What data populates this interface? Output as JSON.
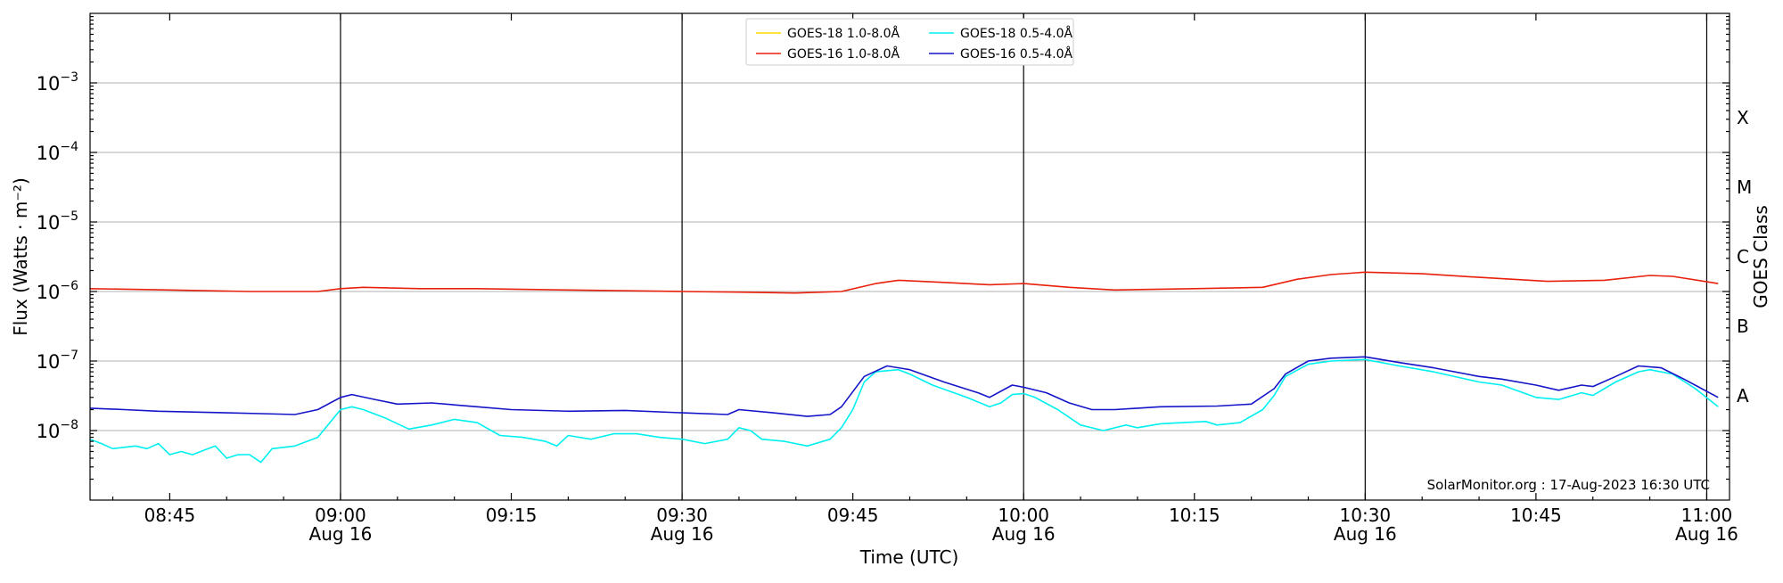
{
  "chart_data": {
    "type": "line",
    "xlabel": "Time (UTC)",
    "ylabel": "Flux (Watts · m⁻²)",
    "ylabel_right": "GOES Class",
    "credit": "SolarMonitor.org : 17-Aug-2023 16:30 UTC",
    "y_scale": "log",
    "ylim": [
      1e-09,
      0.01
    ],
    "xlim": [
      "2023-08-16T08:38",
      "2023-08-16T11:02"
    ],
    "grid": true,
    "legend_position": "top-center",
    "y_ticks": [
      {
        "value": 1e-08,
        "base": "10",
        "exp": "−8"
      },
      {
        "value": 1e-07,
        "base": "10",
        "exp": "−7"
      },
      {
        "value": 1e-06,
        "base": "10",
        "exp": "−6"
      },
      {
        "value": 1e-05,
        "base": "10",
        "exp": "−5"
      },
      {
        "value": 0.0001,
        "base": "10",
        "exp": "−4"
      },
      {
        "value": 0.001,
        "base": "10",
        "exp": "−3"
      }
    ],
    "x_ticks": [
      {
        "time": "2023-08-16T08:45",
        "label": "08:45",
        "sublabel": ""
      },
      {
        "time": "2023-08-16T09:00",
        "label": "09:00",
        "sublabel": "Aug 16"
      },
      {
        "time": "2023-08-16T09:15",
        "label": "09:15",
        "sublabel": ""
      },
      {
        "time": "2023-08-16T09:30",
        "label": "09:30",
        "sublabel": "Aug 16"
      },
      {
        "time": "2023-08-16T09:45",
        "label": "09:45",
        "sublabel": ""
      },
      {
        "time": "2023-08-16T10:00",
        "label": "10:00",
        "sublabel": "Aug 16"
      },
      {
        "time": "2023-08-16T10:15",
        "label": "10:15",
        "sublabel": ""
      },
      {
        "time": "2023-08-16T10:30",
        "label": "10:30",
        "sublabel": "Aug 16"
      },
      {
        "time": "2023-08-16T10:45",
        "label": "10:45",
        "sublabel": ""
      },
      {
        "time": "2023-08-16T11:00",
        "label": "11:00",
        "sublabel": "Aug 16"
      }
    ],
    "vertical_lines": [
      "2023-08-16T09:00",
      "2023-08-16T09:30",
      "2023-08-16T10:00",
      "2023-08-16T10:30",
      "2023-08-16T11:00"
    ],
    "goes_classes": [
      {
        "label": "A",
        "value": 3.16e-08
      },
      {
        "label": "B",
        "value": 3.16e-07
      },
      {
        "label": "C",
        "value": 3.16e-06
      },
      {
        "label": "M",
        "value": 3.16e-05
      },
      {
        "label": "X",
        "value": 0.000316
      }
    ],
    "series": [
      {
        "name": "GOES-18 1.0-8.0Å",
        "color": "#ffd700",
        "points": []
      },
      {
        "name": "GOES-16 1.0-8.0Å",
        "color": "#e8200c",
        "points": [
          [
            "2023-08-16T08:38",
            1.1e-06
          ],
          [
            "2023-08-16T08:45",
            1.05e-06
          ],
          [
            "2023-08-16T08:52",
            1e-06
          ],
          [
            "2023-08-16T08:58",
            1e-06
          ],
          [
            "2023-08-16T09:00",
            1.1e-06
          ],
          [
            "2023-08-16T09:02",
            1.15e-06
          ],
          [
            "2023-08-16T09:07",
            1.1e-06
          ],
          [
            "2023-08-16T09:12",
            1.1e-06
          ],
          [
            "2023-08-16T09:20",
            1.05e-06
          ],
          [
            "2023-08-16T09:30",
            1e-06
          ],
          [
            "2023-08-16T09:35",
            9.8e-07
          ],
          [
            "2023-08-16T09:40",
            9.5e-07
          ],
          [
            "2023-08-16T09:44",
            1e-06
          ],
          [
            "2023-08-16T09:47",
            1.3e-06
          ],
          [
            "2023-08-16T09:49",
            1.45e-06
          ],
          [
            "2023-08-16T09:53",
            1.35e-06
          ],
          [
            "2023-08-16T09:57",
            1.25e-06
          ],
          [
            "2023-08-16T10:00",
            1.3e-06
          ],
          [
            "2023-08-16T10:04",
            1.15e-06
          ],
          [
            "2023-08-16T10:08",
            1.05e-06
          ],
          [
            "2023-08-16T10:15",
            1.1e-06
          ],
          [
            "2023-08-16T10:21",
            1.15e-06
          ],
          [
            "2023-08-16T10:24",
            1.5e-06
          ],
          [
            "2023-08-16T10:27",
            1.75e-06
          ],
          [
            "2023-08-16T10:30",
            1.9e-06
          ],
          [
            "2023-08-16T10:35",
            1.8e-06
          ],
          [
            "2023-08-16T10:40",
            1.6e-06
          ],
          [
            "2023-08-16T10:46",
            1.4e-06
          ],
          [
            "2023-08-16T10:51",
            1.45e-06
          ],
          [
            "2023-08-16T10:55",
            1.7e-06
          ],
          [
            "2023-08-16T10:57",
            1.65e-06
          ],
          [
            "2023-08-16T11:01",
            1.3e-06
          ]
        ]
      },
      {
        "name": "GOES-18 0.5-4.0Å",
        "color": "#00f0f0",
        "points": [
          [
            "2023-08-16T08:38",
            7.5e-09
          ],
          [
            "2023-08-16T08:39",
            6.5e-09
          ],
          [
            "2023-08-16T08:40",
            5.5e-09
          ],
          [
            "2023-08-16T08:42",
            6e-09
          ],
          [
            "2023-08-16T08:43",
            5.5e-09
          ],
          [
            "2023-08-16T08:44",
            6.5e-09
          ],
          [
            "2023-08-16T08:45",
            4.5e-09
          ],
          [
            "2023-08-16T08:46",
            5e-09
          ],
          [
            "2023-08-16T08:47",
            4.5e-09
          ],
          [
            "2023-08-16T08:49",
            6e-09
          ],
          [
            "2023-08-16T08:50",
            4e-09
          ],
          [
            "2023-08-16T08:51",
            4.5e-09
          ],
          [
            "2023-08-16T08:52",
            4.5e-09
          ],
          [
            "2023-08-16T08:53",
            3.5e-09
          ],
          [
            "2023-08-16T08:54",
            5.5e-09
          ],
          [
            "2023-08-16T08:56",
            6e-09
          ],
          [
            "2023-08-16T08:58",
            8e-09
          ],
          [
            "2023-08-16T09:00",
            2e-08
          ],
          [
            "2023-08-16T09:01",
            2.2e-08
          ],
          [
            "2023-08-16T09:02",
            2e-08
          ],
          [
            "2023-08-16T09:04",
            1.5e-08
          ],
          [
            "2023-08-16T09:06",
            1.05e-08
          ],
          [
            "2023-08-16T09:08",
            1.2e-08
          ],
          [
            "2023-08-16T09:10",
            1.45e-08
          ],
          [
            "2023-08-16T09:12",
            1.3e-08
          ],
          [
            "2023-08-16T09:14",
            8.5e-09
          ],
          [
            "2023-08-16T09:16",
            8e-09
          ],
          [
            "2023-08-16T09:18",
            7e-09
          ],
          [
            "2023-08-16T09:19",
            6e-09
          ],
          [
            "2023-08-16T09:20",
            8.5e-09
          ],
          [
            "2023-08-16T09:22",
            7.5e-09
          ],
          [
            "2023-08-16T09:24",
            9e-09
          ],
          [
            "2023-08-16T09:26",
            9e-09
          ],
          [
            "2023-08-16T09:28",
            8e-09
          ],
          [
            "2023-08-16T09:30",
            7.5e-09
          ],
          [
            "2023-08-16T09:32",
            6.5e-09
          ],
          [
            "2023-08-16T09:34",
            7.5e-09
          ],
          [
            "2023-08-16T09:35",
            1.1e-08
          ],
          [
            "2023-08-16T09:36",
            1e-08
          ],
          [
            "2023-08-16T09:37",
            7.5e-09
          ],
          [
            "2023-08-16T09:39",
            7e-09
          ],
          [
            "2023-08-16T09:41",
            6e-09
          ],
          [
            "2023-08-16T09:43",
            7.5e-09
          ],
          [
            "2023-08-16T09:44",
            1.1e-08
          ],
          [
            "2023-08-16T09:45",
            2e-08
          ],
          [
            "2023-08-16T09:46",
            5e-08
          ],
          [
            "2023-08-16T09:47",
            7e-08
          ],
          [
            "2023-08-16T09:49",
            7.5e-08
          ],
          [
            "2023-08-16T09:50",
            6.5e-08
          ],
          [
            "2023-08-16T09:52",
            4.5e-08
          ],
          [
            "2023-08-16T09:55",
            3e-08
          ],
          [
            "2023-08-16T09:57",
            2.2e-08
          ],
          [
            "2023-08-16T09:58",
            2.5e-08
          ],
          [
            "2023-08-16T09:59",
            3.3e-08
          ],
          [
            "2023-08-16T10:00",
            3.4e-08
          ],
          [
            "2023-08-16T10:01",
            3e-08
          ],
          [
            "2023-08-16T10:03",
            2e-08
          ],
          [
            "2023-08-16T10:05",
            1.2e-08
          ],
          [
            "2023-08-16T10:07",
            1e-08
          ],
          [
            "2023-08-16T10:09",
            1.2e-08
          ],
          [
            "2023-08-16T10:10",
            1.1e-08
          ],
          [
            "2023-08-16T10:12",
            1.25e-08
          ],
          [
            "2023-08-16T10:14",
            1.3e-08
          ],
          [
            "2023-08-16T10:16",
            1.35e-08
          ],
          [
            "2023-08-16T10:17",
            1.2e-08
          ],
          [
            "2023-08-16T10:19",
            1.3e-08
          ],
          [
            "2023-08-16T10:21",
            2e-08
          ],
          [
            "2023-08-16T10:22",
            3.2e-08
          ],
          [
            "2023-08-16T10:23",
            6e-08
          ],
          [
            "2023-08-16T10:25",
            9e-08
          ],
          [
            "2023-08-16T10:27",
            1e-07
          ],
          [
            "2023-08-16T10:30",
            1.05e-07
          ],
          [
            "2023-08-16T10:33",
            8.5e-08
          ],
          [
            "2023-08-16T10:36",
            7e-08
          ],
          [
            "2023-08-16T10:40",
            5e-08
          ],
          [
            "2023-08-16T10:42",
            4.5e-08
          ],
          [
            "2023-08-16T10:45",
            3e-08
          ],
          [
            "2023-08-16T10:47",
            2.8e-08
          ],
          [
            "2023-08-16T10:49",
            3.5e-08
          ],
          [
            "2023-08-16T10:50",
            3.2e-08
          ],
          [
            "2023-08-16T10:52",
            5e-08
          ],
          [
            "2023-08-16T10:54",
            7e-08
          ],
          [
            "2023-08-16T10:55",
            7.5e-08
          ],
          [
            "2023-08-16T10:57",
            6.5e-08
          ],
          [
            "2023-08-16T10:59",
            4e-08
          ],
          [
            "2023-08-16T11:01",
            2.2e-08
          ]
        ]
      },
      {
        "name": "GOES-16 0.5-4.0Å",
        "color": "#1414c8",
        "points": [
          [
            "2023-08-16T08:38",
            2.1e-08
          ],
          [
            "2023-08-16T08:41",
            2e-08
          ],
          [
            "2023-08-16T08:44",
            1.9e-08
          ],
          [
            "2023-08-16T08:47",
            1.85e-08
          ],
          [
            "2023-08-16T08:50",
            1.8e-08
          ],
          [
            "2023-08-16T08:53",
            1.75e-08
          ],
          [
            "2023-08-16T08:56",
            1.7e-08
          ],
          [
            "2023-08-16T08:58",
            2e-08
          ],
          [
            "2023-08-16T09:00",
            3e-08
          ],
          [
            "2023-08-16T09:01",
            3.3e-08
          ],
          [
            "2023-08-16T09:03",
            2.8e-08
          ],
          [
            "2023-08-16T09:05",
            2.4e-08
          ],
          [
            "2023-08-16T09:08",
            2.5e-08
          ],
          [
            "2023-08-16T09:12",
            2.2e-08
          ],
          [
            "2023-08-16T09:15",
            2e-08
          ],
          [
            "2023-08-16T09:20",
            1.9e-08
          ],
          [
            "2023-08-16T09:25",
            1.95e-08
          ],
          [
            "2023-08-16T09:30",
            1.8e-08
          ],
          [
            "2023-08-16T09:34",
            1.7e-08
          ],
          [
            "2023-08-16T09:35",
            2e-08
          ],
          [
            "2023-08-16T09:38",
            1.8e-08
          ],
          [
            "2023-08-16T09:41",
            1.6e-08
          ],
          [
            "2023-08-16T09:43",
            1.7e-08
          ],
          [
            "2023-08-16T09:44",
            2.2e-08
          ],
          [
            "2023-08-16T09:46",
            6e-08
          ],
          [
            "2023-08-16T09:48",
            8.5e-08
          ],
          [
            "2023-08-16T09:50",
            7.5e-08
          ],
          [
            "2023-08-16T09:53",
            5e-08
          ],
          [
            "2023-08-16T09:56",
            3.5e-08
          ],
          [
            "2023-08-16T09:57",
            3e-08
          ],
          [
            "2023-08-16T09:59",
            4.5e-08
          ],
          [
            "2023-08-16T10:00",
            4.2e-08
          ],
          [
            "2023-08-16T10:02",
            3.5e-08
          ],
          [
            "2023-08-16T10:04",
            2.5e-08
          ],
          [
            "2023-08-16T10:06",
            2e-08
          ],
          [
            "2023-08-16T10:08",
            2e-08
          ],
          [
            "2023-08-16T10:12",
            2.2e-08
          ],
          [
            "2023-08-16T10:17",
            2.25e-08
          ],
          [
            "2023-08-16T10:20",
            2.4e-08
          ],
          [
            "2023-08-16T10:22",
            4e-08
          ],
          [
            "2023-08-16T10:23",
            6.5e-08
          ],
          [
            "2023-08-16T10:25",
            1e-07
          ],
          [
            "2023-08-16T10:27",
            1.1e-07
          ],
          [
            "2023-08-16T10:30",
            1.15e-07
          ],
          [
            "2023-08-16T10:33",
            9.5e-08
          ],
          [
            "2023-08-16T10:36",
            8e-08
          ],
          [
            "2023-08-16T10:40",
            6e-08
          ],
          [
            "2023-08-16T10:42",
            5.5e-08
          ],
          [
            "2023-08-16T10:45",
            4.5e-08
          ],
          [
            "2023-08-16T10:47",
            3.8e-08
          ],
          [
            "2023-08-16T10:49",
            4.5e-08
          ],
          [
            "2023-08-16T10:50",
            4.3e-08
          ],
          [
            "2023-08-16T10:52",
            6e-08
          ],
          [
            "2023-08-16T10:54",
            8.5e-08
          ],
          [
            "2023-08-16T10:56",
            8e-08
          ],
          [
            "2023-08-16T10:58",
            5.5e-08
          ],
          [
            "2023-08-16T11:01",
            3e-08
          ]
        ]
      }
    ]
  }
}
